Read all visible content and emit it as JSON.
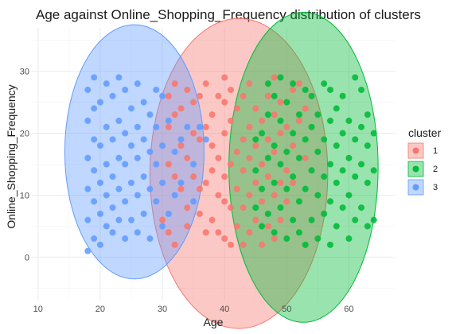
{
  "chart_data": {
    "type": "scatter",
    "title": "Age against Online_Shopping_Frequency distribution of clusters",
    "xlabel": "Age",
    "ylabel": "Online_Shopping_Frequency",
    "xlim": [
      9,
      67.5
    ],
    "ylim": [
      -7,
      37
    ],
    "x_ticks": [
      10,
      20,
      30,
      40,
      50,
      60
    ],
    "y_ticks": [
      0,
      10,
      20,
      30
    ],
    "grid": true,
    "legend": {
      "title": "cluster",
      "position": "right"
    },
    "series": [
      {
        "name": "1",
        "color": "#F8766D",
        "ellipse": {
          "cx": 42.3,
          "cy": 13.5,
          "rx": 14.3,
          "ry": 25
        },
        "points": [
          [
            30,
            6
          ],
          [
            31,
            4
          ],
          [
            31,
            15
          ],
          [
            31,
            21
          ],
          [
            31,
            26
          ],
          [
            32,
            2
          ],
          [
            32,
            13
          ],
          [
            32,
            23
          ],
          [
            32,
            28
          ],
          [
            33,
            11
          ],
          [
            33,
            18
          ],
          [
            33,
            24
          ],
          [
            34,
            5
          ],
          [
            34,
            8
          ],
          [
            34,
            16
          ],
          [
            34,
            27
          ],
          [
            35,
            13
          ],
          [
            35,
            20
          ],
          [
            35,
            25
          ],
          [
            36,
            7
          ],
          [
            36,
            11
          ],
          [
            36,
            19
          ],
          [
            36,
            26
          ],
          [
            37,
            4
          ],
          [
            37,
            12
          ],
          [
            37,
            21
          ],
          [
            37,
            28
          ],
          [
            38,
            6
          ],
          [
            38,
            14
          ],
          [
            38,
            18
          ],
          [
            38,
            23
          ],
          [
            39,
            4
          ],
          [
            39,
            10
          ],
          [
            39,
            16
          ],
          [
            39,
            26
          ],
          [
            40,
            3
          ],
          [
            40,
            9
          ],
          [
            40,
            13
          ],
          [
            40,
            20
          ],
          [
            40,
            25
          ],
          [
            40,
            29
          ],
          [
            41,
            2
          ],
          [
            41,
            8
          ],
          [
            41,
            15
          ],
          [
            41,
            22
          ],
          [
            41,
            27
          ],
          [
            42,
            5
          ],
          [
            42,
            11
          ],
          [
            42,
            17
          ],
          [
            42,
            24
          ],
          [
            43,
            2
          ],
          [
            43,
            8
          ],
          [
            43,
            14
          ],
          [
            43,
            19
          ],
          [
            43,
            26
          ],
          [
            44,
            4
          ],
          [
            44,
            10
          ],
          [
            44,
            16
          ],
          [
            44,
            21
          ],
          [
            44,
            28
          ],
          [
            45,
            6
          ],
          [
            45,
            12
          ],
          [
            45,
            18
          ],
          [
            45,
            24
          ],
          [
            46,
            2
          ],
          [
            46,
            9
          ],
          [
            46,
            15
          ],
          [
            46,
            22
          ],
          [
            47,
            5
          ],
          [
            47,
            13
          ],
          [
            47,
            19
          ],
          [
            47,
            26
          ],
          [
            48,
            3
          ],
          [
            48,
            10
          ],
          [
            48,
            17
          ],
          [
            48,
            23
          ],
          [
            48,
            29
          ],
          [
            49,
            6
          ],
          [
            49,
            12
          ],
          [
            49,
            20
          ],
          [
            49,
            25
          ],
          [
            50,
            9
          ],
          [
            50,
            14
          ],
          [
            50,
            21
          ],
          [
            51,
            12
          ],
          [
            51,
            18
          ],
          [
            51,
            27
          ],
          [
            52,
            22
          ],
          [
            52,
            28
          ],
          [
            53,
            16
          ],
          [
            53,
            24
          ]
        ]
      },
      {
        "name": "2",
        "color": "#00BA38",
        "ellipse": {
          "cx": 52.7,
          "cy": 14.5,
          "rx": 12,
          "ry": 25
        },
        "points": [
          [
            45,
            8
          ],
          [
            45,
            14
          ],
          [
            45,
            19
          ],
          [
            46,
            5
          ],
          [
            46,
            11
          ],
          [
            46,
            20
          ],
          [
            47,
            7
          ],
          [
            47,
            16
          ],
          [
            47,
            23
          ],
          [
            47,
            28
          ],
          [
            48,
            4
          ],
          [
            48,
            12
          ],
          [
            48,
            18
          ],
          [
            48,
            26
          ],
          [
            49,
            8
          ],
          [
            49,
            15
          ],
          [
            49,
            22
          ],
          [
            49,
            29
          ],
          [
            50,
            3
          ],
          [
            50,
            11
          ],
          [
            50,
            17
          ],
          [
            50,
            25
          ],
          [
            51,
            6
          ],
          [
            51,
            13
          ],
          [
            51,
            20
          ],
          [
            51,
            28
          ],
          [
            52,
            4
          ],
          [
            52,
            9
          ],
          [
            52,
            16
          ],
          [
            52,
            23
          ],
          [
            53,
            2
          ],
          [
            53,
            11
          ],
          [
            53,
            19
          ],
          [
            53,
            27
          ],
          [
            54,
            6
          ],
          [
            54,
            14
          ],
          [
            54,
            21
          ],
          [
            54,
            26
          ],
          [
            55,
            3
          ],
          [
            55,
            10
          ],
          [
            55,
            17
          ],
          [
            55,
            23
          ],
          [
            56,
            7
          ],
          [
            56,
            13
          ],
          [
            56,
            19
          ],
          [
            56,
            28
          ],
          [
            57,
            2
          ],
          [
            57,
            9
          ],
          [
            57,
            15
          ],
          [
            57,
            22
          ],
          [
            57,
            27
          ],
          [
            58,
            5
          ],
          [
            58,
            12
          ],
          [
            58,
            18
          ],
          [
            58,
            24
          ],
          [
            59,
            8
          ],
          [
            59,
            14
          ],
          [
            59,
            20
          ],
          [
            59,
            26
          ],
          [
            60,
            3
          ],
          [
            60,
            10
          ],
          [
            60,
            16
          ],
          [
            60,
            22
          ],
          [
            61,
            6
          ],
          [
            61,
            13
          ],
          [
            61,
            19
          ],
          [
            61,
            29
          ],
          [
            62,
            8
          ],
          [
            62,
            15
          ],
          [
            62,
            21
          ],
          [
            62,
            27
          ],
          [
            63,
            5
          ],
          [
            63,
            12
          ],
          [
            63,
            18
          ],
          [
            63,
            23
          ],
          [
            64,
            6
          ],
          [
            64,
            14
          ],
          [
            64,
            20
          ]
        ]
      },
      {
        "name": "3",
        "color": "#619CFF",
        "ellipse": {
          "cx": 25.5,
          "cy": 17,
          "rx": 11.2,
          "ry": 20.5
        },
        "points": [
          [
            18,
            1
          ],
          [
            18,
            6
          ],
          [
            18,
            11
          ],
          [
            18,
            16
          ],
          [
            18,
            22
          ],
          [
            18,
            27
          ],
          [
            19,
            3
          ],
          [
            19,
            9
          ],
          [
            19,
            14
          ],
          [
            19,
            19
          ],
          [
            19,
            24
          ],
          [
            19,
            29
          ],
          [
            20,
            2
          ],
          [
            20,
            7
          ],
          [
            20,
            12
          ],
          [
            20,
            18
          ],
          [
            20,
            25
          ],
          [
            21,
            5
          ],
          [
            21,
            10
          ],
          [
            21,
            15
          ],
          [
            21,
            21
          ],
          [
            21,
            28
          ],
          [
            22,
            4
          ],
          [
            22,
            8
          ],
          [
            22,
            13
          ],
          [
            22,
            19
          ],
          [
            22,
            26
          ],
          [
            23,
            6
          ],
          [
            23,
            11
          ],
          [
            23,
            16
          ],
          [
            23,
            22
          ],
          [
            23,
            29
          ],
          [
            24,
            3
          ],
          [
            24,
            9
          ],
          [
            24,
            15
          ],
          [
            24,
            20
          ],
          [
            24,
            27
          ],
          [
            25,
            6
          ],
          [
            25,
            12
          ],
          [
            25,
            18
          ],
          [
            25,
            24
          ],
          [
            26,
            4
          ],
          [
            26,
            10
          ],
          [
            26,
            16
          ],
          [
            26,
            21
          ],
          [
            26,
            28
          ],
          [
            27,
            7
          ],
          [
            27,
            13
          ],
          [
            27,
            19
          ],
          [
            27,
            25
          ],
          [
            28,
            3
          ],
          [
            28,
            11
          ],
          [
            28,
            17
          ],
          [
            28,
            23
          ],
          [
            29,
            9
          ],
          [
            29,
            15
          ],
          [
            29,
            21
          ],
          [
            29,
            27
          ],
          [
            30,
            5
          ],
          [
            30,
            12
          ],
          [
            30,
            18
          ],
          [
            30,
            26
          ],
          [
            31,
            7
          ],
          [
            31,
            22
          ],
          [
            32,
            10
          ],
          [
            32,
            17
          ],
          [
            33,
            12
          ],
          [
            33,
            19
          ],
          [
            34,
            21
          ],
          [
            35,
            15
          ],
          [
            35,
            9
          ],
          [
            36,
            21
          ],
          [
            37,
            19
          ]
        ]
      }
    ]
  }
}
